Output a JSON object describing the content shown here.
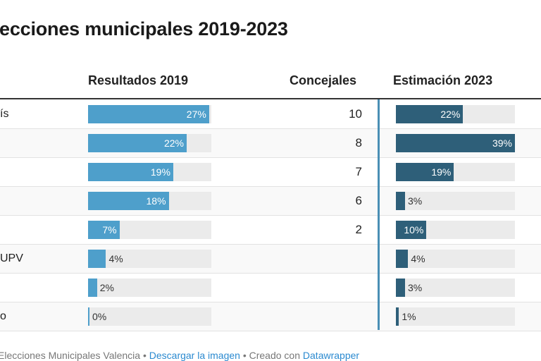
{
  "title": "ecciones municipales 2019-2023",
  "headers": {
    "results_2019": "Resultados 2019",
    "councillors": "Concejales",
    "estimate_2023": "Estimación 2023"
  },
  "colors": {
    "bar_2019": "#4e9fcb",
    "bar_2023": "#2e5f79",
    "track": "#ebebeb",
    "divider": "#4a8fb5"
  },
  "scale": {
    "max_2019": 27.5,
    "max_2023": 39
  },
  "rows": [
    {
      "name": "ís",
      "r2019": 27,
      "r2019_label": "27%",
      "councillors": "10",
      "e2023": 22,
      "e2023_label": "22%"
    },
    {
      "name": "",
      "r2019": 22,
      "r2019_label": "22%",
      "councillors": "8",
      "e2023": 39,
      "e2023_label": "39%"
    },
    {
      "name": "",
      "r2019": 19,
      "r2019_label": "19%",
      "councillors": "7",
      "e2023": 19,
      "e2023_label": "19%"
    },
    {
      "name": "",
      "r2019": 18,
      "r2019_label": "18%",
      "councillors": "6",
      "e2023": 3,
      "e2023_label": "3%"
    },
    {
      "name": "",
      "r2019": 7,
      "r2019_label": "7%",
      "councillors": "2",
      "e2023": 10,
      "e2023_label": "10%"
    },
    {
      "name": "UPV",
      "r2019": 4,
      "r2019_label": "4%",
      "councillors": "",
      "e2023": 4,
      "e2023_label": "4%"
    },
    {
      "name": "",
      "r2019": 2,
      "r2019_label": "2%",
      "councillors": "",
      "e2023": 3,
      "e2023_label": "3%"
    },
    {
      "name": "o",
      "r2019": 0,
      "r2019_label": "0%",
      "councillors": "",
      "e2023": 1,
      "e2023_label": "1%"
    }
  ],
  "footer": {
    "source": "Elecciones Municipales Valencia",
    "sep": " • ",
    "download": "Descargar la imagen",
    "created": "Creado con ",
    "tool": "Datawrapper"
  }
}
